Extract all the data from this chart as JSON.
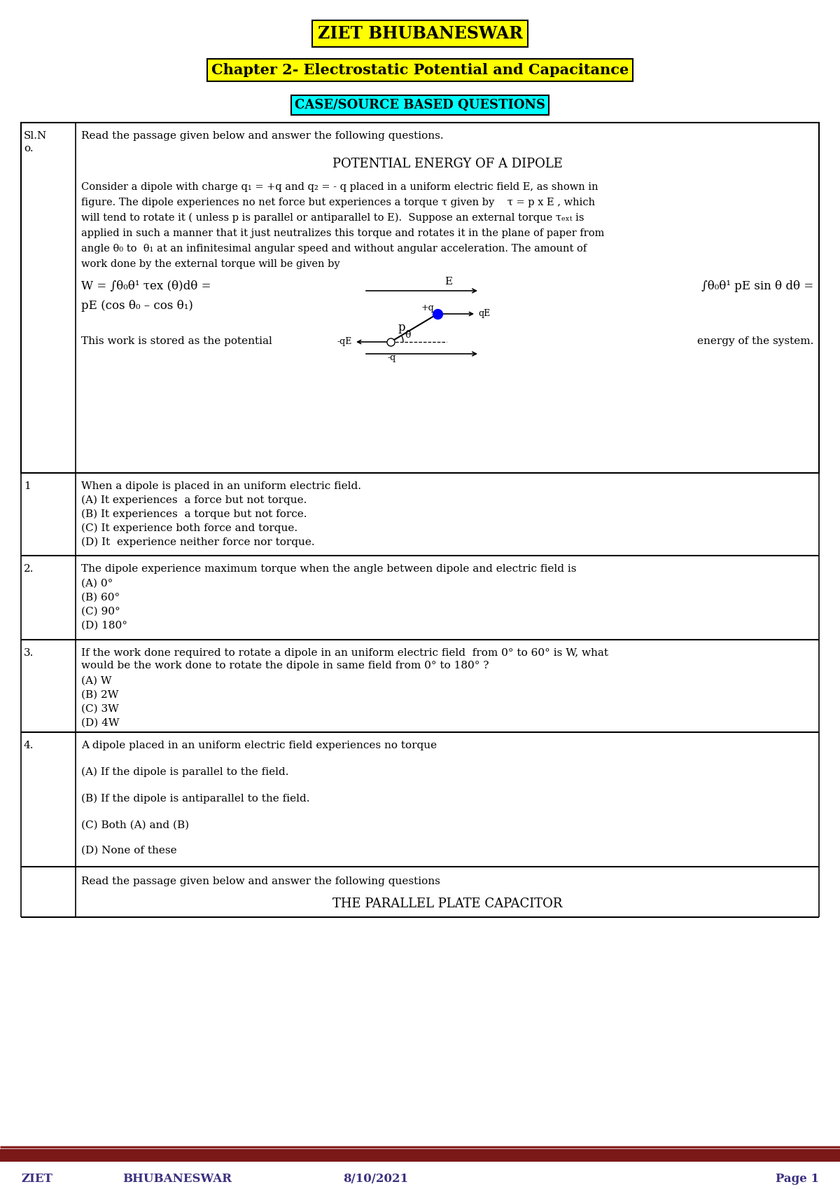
{
  "title": "ZIET BHUBANESWAR",
  "subtitle": "Chapter 2- Electrostatic Potential and Capacitance",
  "section_header": "CASE/SOURCE BASED QUESTIONS",
  "title_bg": "#FFFF00",
  "subtitle_bg": "#FFFF00",
  "section_bg": "#00FFFF",
  "footer_bar_color": "#7B1818",
  "footer_text_color": "#3B3080",
  "background_color": "#FFFFFF",
  "passage_text_lines": [
    "Consider a dipole with charge q₁ = +q and q₂ = - q placed in a uniform electric field E, as shown in",
    "figure. The dipole experiences no net force but experiences a torque τ given by    τ = p x E , which",
    "will tend to rotate it ( unless p is parallel or antiparallel to E).  Suppose an external torque τₑₓₜ is",
    "applied in such a manner that it just neutralizes this torque and rotates it in the plane of paper from",
    "angle θ₀ to  θ₁ at an infinitesimal angular speed and without angular acceleration. The amount of",
    "work done by the external torque will be given by"
  ],
  "q1_text": "When a dipole is placed in an uniform electric field.",
  "q1_a": "(A) It experiences  a force but not torque.",
  "q1_b": "(B) It experiences  a torque but not force.",
  "q1_c": "(C) It experience both force and torque.",
  "q1_d": "(D) It  experience neither force nor torque.",
  "q2_text": "The dipole experience maximum torque when the angle between dipole and electric field is",
  "q2_a": "(A) 0°",
  "q2_b": "(B) 60°",
  "q2_c": "(C) 90°",
  "q2_d": "(D) 180°",
  "q3_text1": "If the work done required to rotate a dipole in an uniform electric field  from 0° to 60° is W, what",
  "q3_text2": "would be the work done to rotate the dipole in same field from 0° to 180° ?",
  "q3_a": "(A) W",
  "q3_b": "(B) 2W",
  "q3_c": "(C) 3W",
  "q3_d": "(D) 4W",
  "q4_text": "A dipole placed in an uniform electric field experiences no torque",
  "q4_a": "(A) If the dipole is parallel to the field.",
  "q4_b": "(B) If the dipole is antiparallel to the field.",
  "q4_c": "(C) Both (A) and (B)",
  "q4_d": "(D) None of these",
  "last_row_text": "Read the passage given below and answer the following questions",
  "last_row_subtext": "THE PARALLEL PLATE CAPACITOR",
  "footer_left": "ZIET",
  "footer_center_left": "BHUBANESWAR",
  "footer_center": "8/10/2021",
  "footer_right": "Page 1"
}
